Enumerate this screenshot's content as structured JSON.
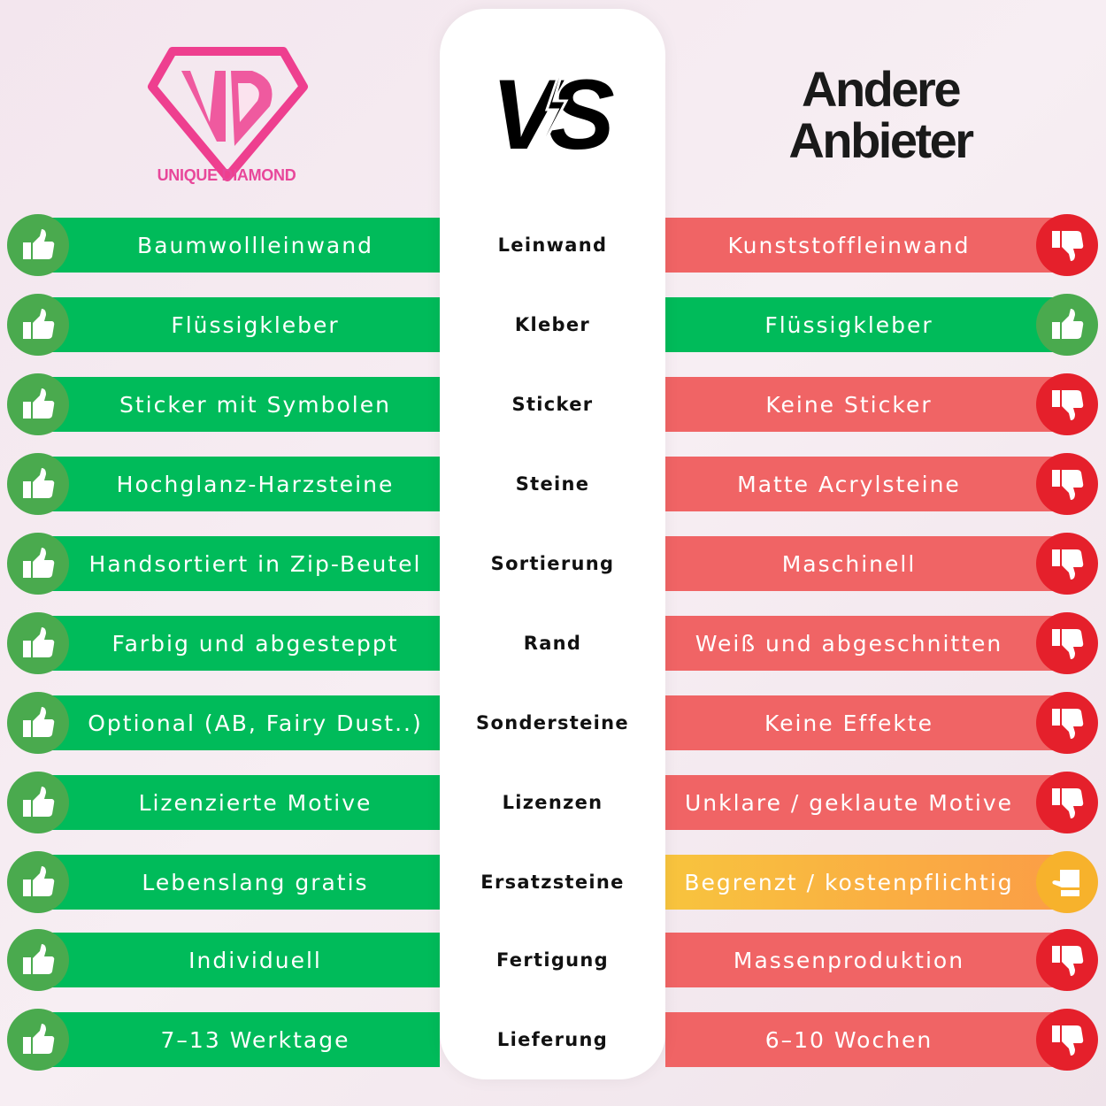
{
  "brand": {
    "logo_text": "UNIQUE DIAMOND",
    "logo_letters": "UD",
    "color": "#e8479a"
  },
  "vs_label": "VS",
  "other_title_line1": "Andere",
  "other_title_line2": "Anbieter",
  "colors": {
    "good": "#00bb5a",
    "bad": "#f06465",
    "neutral": "#f8c43e",
    "good_icon": "#4aaa4e",
    "bad_icon": "#e5202b",
    "neutral_icon": "#f7b22c"
  },
  "rows": [
    {
      "category": "Leinwand",
      "ours": "Baumwollleinwand",
      "theirs": "Kunststoffleinwand",
      "theirs_rating": "bad"
    },
    {
      "category": "Kleber",
      "ours": "Flüssigkleber",
      "theirs": "Flüssigkleber",
      "theirs_rating": "good"
    },
    {
      "category": "Sticker",
      "ours": "Sticker mit Symbolen",
      "theirs": "Keine Sticker",
      "theirs_rating": "bad"
    },
    {
      "category": "Steine",
      "ours": "Hochglanz-Harzsteine",
      "theirs": "Matte Acrylsteine",
      "theirs_rating": "bad"
    },
    {
      "category": "Sortierung",
      "ours": "Handsortiert in Zip-Beutel",
      "theirs": "Maschinell",
      "theirs_rating": "bad"
    },
    {
      "category": "Rand",
      "ours": "Farbig und abgesteppt",
      "theirs": "Weiß und abgeschnitten",
      "theirs_rating": "bad"
    },
    {
      "category": "Sondersteine",
      "ours": "Optional (AB, Fairy Dust..)",
      "theirs": "Keine Effekte",
      "theirs_rating": "bad"
    },
    {
      "category": "Lizenzen",
      "ours": "Lizenzierte Motive",
      "theirs": "Unklare / geklaute Motive",
      "theirs_rating": "bad"
    },
    {
      "category": "Ersatzsteine",
      "ours": "Lebenslang gratis",
      "theirs": "Begrenzt / kostenpflichtig",
      "theirs_rating": "neutral"
    },
    {
      "category": "Fertigung",
      "ours": "Individuell",
      "theirs": "Massenproduktion",
      "theirs_rating": "bad"
    },
    {
      "category": "Lieferung",
      "ours": "7–13 Werktage",
      "theirs": "6–10 Wochen",
      "theirs_rating": "bad"
    }
  ]
}
